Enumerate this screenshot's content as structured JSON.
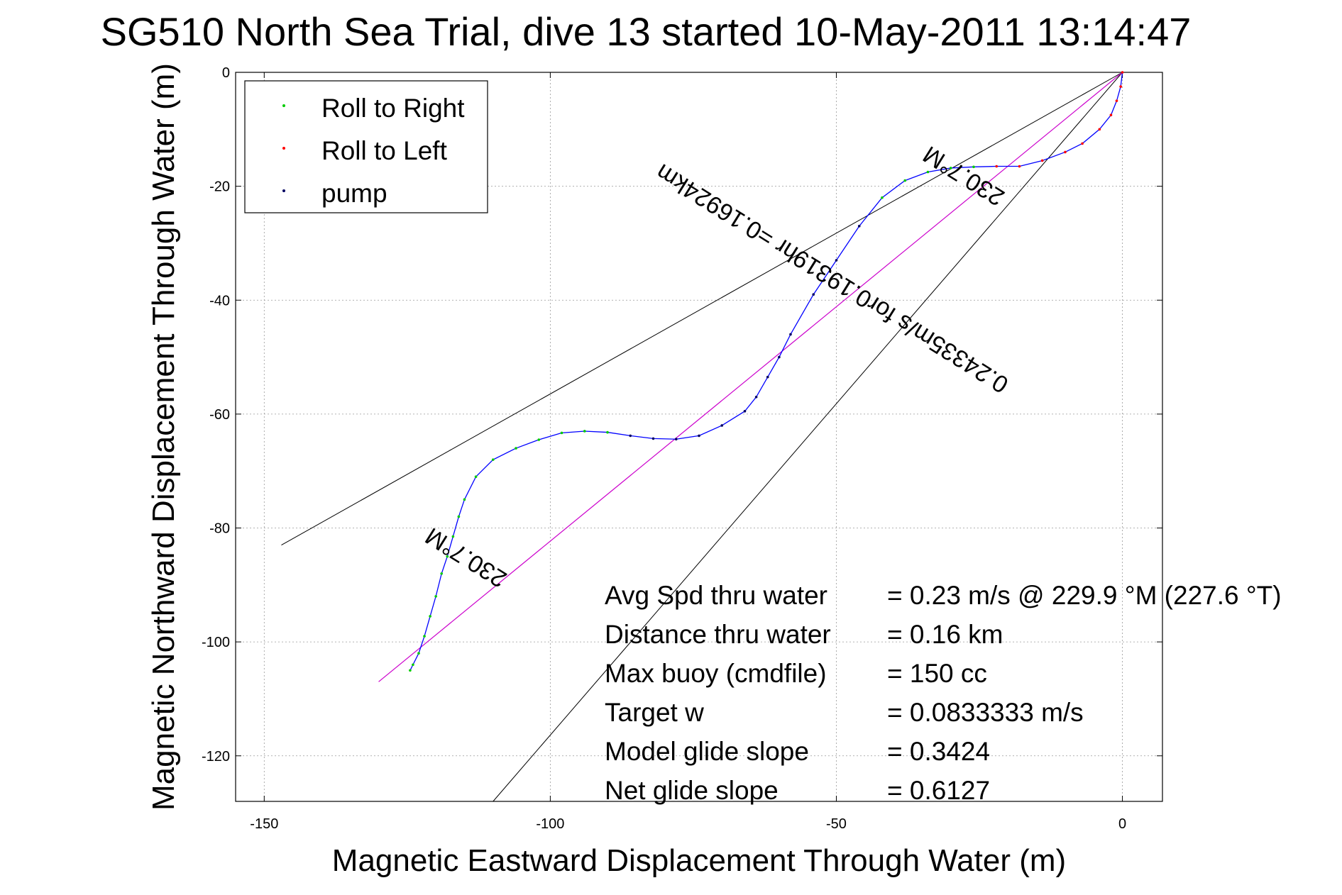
{
  "chart_data": {
    "type": "line",
    "title": "SG510 North Sea Trial, dive 13 started 10-May-2011 13:14:47",
    "xlabel": "Magnetic Eastward Displacement Through Water (m)",
    "ylabel": "Magnetic Northward Displacement Through Water (m)",
    "xlim": [
      -155,
      7
    ],
    "ylim": [
      -128,
      0
    ],
    "xticks": [
      -150,
      -100,
      -50,
      0
    ],
    "yticks": [
      0,
      -20,
      -40,
      -60,
      -80,
      -100,
      -120
    ],
    "grid": true,
    "legend_position": "top-left",
    "legend": [
      {
        "label": "Roll to Right",
        "color": "#00cc00"
      },
      {
        "label": "Roll to Left",
        "color": "#ff0000"
      },
      {
        "label": "pump",
        "color": "#000060"
      }
    ],
    "series": [
      {
        "name": "track",
        "color": "#0000ff",
        "x": [
          0,
          -0.3,
          -1,
          -2,
          -4,
          -7,
          -10,
          -14,
          -18,
          -22,
          -26,
          -30,
          -34,
          -38,
          -42,
          -46,
          -50,
          -54,
          -58,
          -60,
          -62,
          -64,
          -66,
          -70,
          -74,
          -78,
          -82,
          -86,
          -90,
          -94,
          -98,
          -102,
          -106,
          -110,
          -113,
          -115,
          -116,
          -117,
          -118,
          -119,
          -120,
          -121,
          -122,
          -123,
          -124,
          -124.5
        ],
        "y": [
          0,
          -2.5,
          -5,
          -7.5,
          -10,
          -12.5,
          -14,
          -15.5,
          -16.5,
          -16.5,
          -16.6,
          -16.8,
          -17.5,
          -19,
          -22,
          -27,
          -33,
          -39,
          -46,
          -50,
          -53.5,
          -57,
          -59.5,
          -62,
          -63.8,
          -64.4,
          -64.3,
          -63.8,
          -63.2,
          -63,
          -63.3,
          -64.5,
          -66,
          -68,
          -71,
          -75,
          -78,
          -81.5,
          -85,
          -88,
          -92,
          -95.5,
          -99,
          -102,
          -104,
          -105
        ]
      },
      {
        "name": "straight path",
        "color": "#cc00cc",
        "x": [
          0,
          -130
        ],
        "y": [
          0,
          -107
        ]
      }
    ],
    "bound_lines": {
      "color": "#000000",
      "x_end": [
        -147,
        -110
      ],
      "y_end": [
        -83,
        -128
      ]
    },
    "annotations": [
      {
        "text": "230.7°M",
        "x": -27,
        "y": -17,
        "rotate": 212
      },
      {
        "text": "0.24335m/s for0.19319hr =0.16924km",
        "x": -50,
        "y": -35,
        "rotate": 212
      },
      {
        "text": "230.7°M",
        "x": -114,
        "y": -84,
        "rotate": 212
      }
    ],
    "stats": [
      {
        "label": "Avg Spd thru water",
        "value": "=  0.23 m/s @ 229.9 °M (227.6 °T)"
      },
      {
        "label": "Distance thru water",
        "value": "=  0.16 km"
      },
      {
        "label": "Max buoy (cmdfile)",
        "value": "= 150 cc"
      },
      {
        "label": "Target w",
        "value": "= 0.0833333 m/s"
      },
      {
        "label": "Model glide slope",
        "value": "= 0.3424"
      },
      {
        "label": "Net glide slope",
        "value": "= 0.6127"
      }
    ]
  }
}
